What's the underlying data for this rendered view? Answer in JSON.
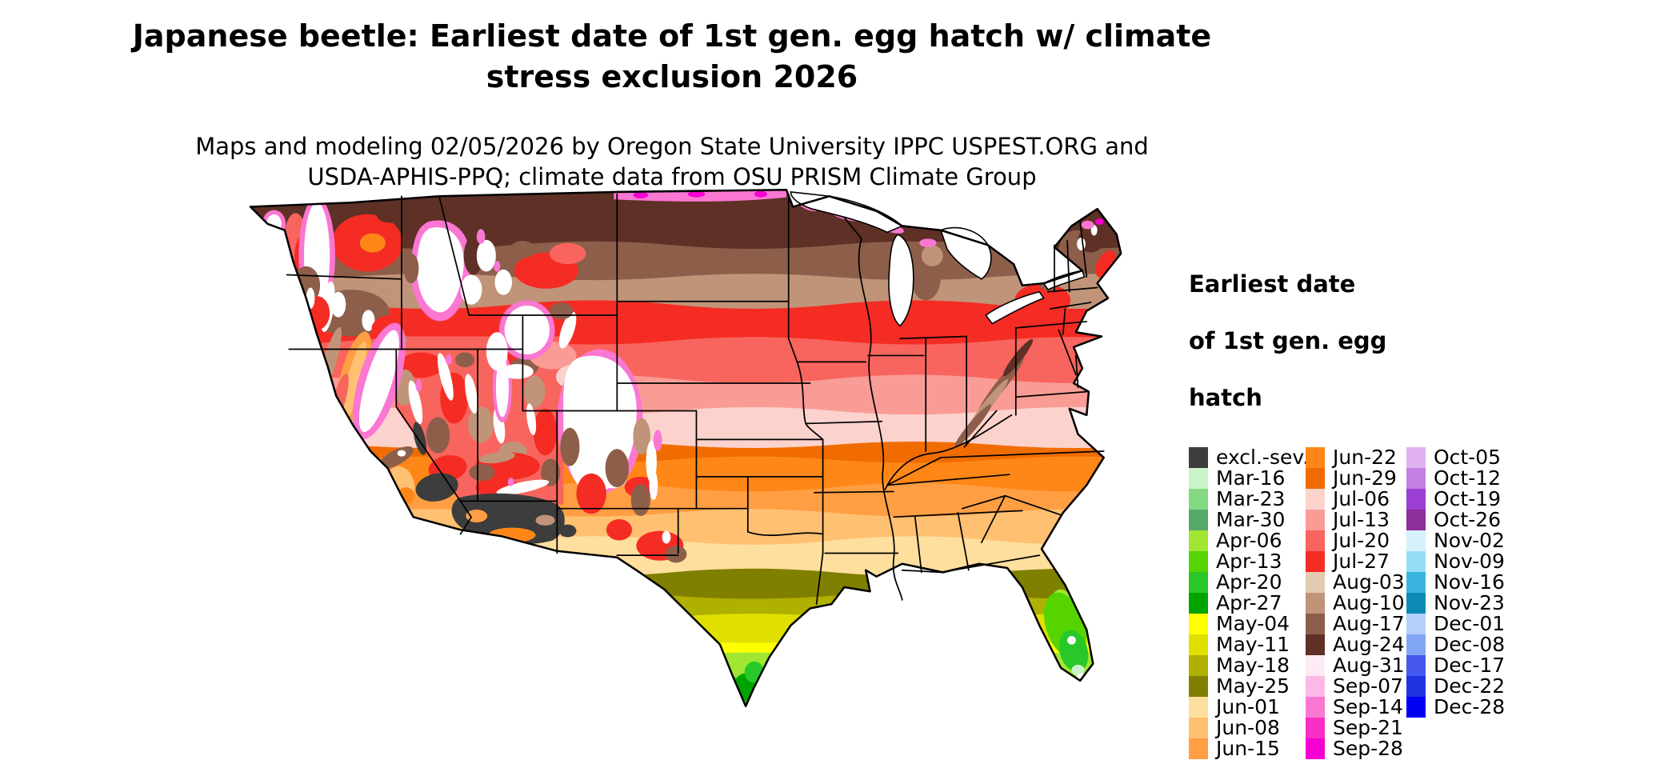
{
  "header": {
    "title_lines": [
      "Japanese beetle: Earliest date of 1st gen. egg hatch w/ climate",
      "stress exclusion 2026"
    ],
    "subtitle_lines": [
      "Maps and modeling 02/05/2026 by Oregon State University IPPC USPEST.ORG and",
      "USDA-APHIS-PPQ; climate data from OSU PRISM Climate Group"
    ]
  },
  "legend": {
    "title_lines": [
      "Earliest date",
      "of 1st gen. egg",
      "hatch"
    ],
    "columns": [
      [
        {
          "label": "excl.-sev.",
          "color": "#3d3d3d"
        },
        {
          "label": "Mar-16",
          "color": "#c9f4c9"
        },
        {
          "label": "Mar-23",
          "color": "#82d982"
        },
        {
          "label": "Mar-30",
          "color": "#57a86b"
        },
        {
          "label": "Apr-06",
          "color": "#a0e632"
        },
        {
          "label": "Apr-13",
          "color": "#55d400"
        },
        {
          "label": "Apr-20",
          "color": "#28c828"
        },
        {
          "label": "Apr-27",
          "color": "#00a400"
        },
        {
          "label": "May-04",
          "color": "#ffff00"
        },
        {
          "label": "May-11",
          "color": "#e0e000"
        },
        {
          "label": "May-18",
          "color": "#b0b000"
        },
        {
          "label": "May-25",
          "color": "#808000"
        },
        {
          "label": "Jun-01",
          "color": "#ffdf9e"
        },
        {
          "label": "Jun-08",
          "color": "#ffc072"
        },
        {
          "label": "Jun-15",
          "color": "#ff9e42"
        }
      ],
      [
        {
          "label": "Jun-22",
          "color": "#ff8718"
        },
        {
          "label": "Jun-29",
          "color": "#f06c00"
        },
        {
          "label": "Jul-06",
          "color": "#fcd2cd"
        },
        {
          "label": "Jul-13",
          "color": "#fa9c96"
        },
        {
          "label": "Jul-20",
          "color": "#f8655e"
        },
        {
          "label": "Jul-27",
          "color": "#f52c24"
        },
        {
          "label": "Aug-03",
          "color": "#e3cbb3"
        },
        {
          "label": "Aug-10",
          "color": "#c09478"
        },
        {
          "label": "Aug-17",
          "color": "#8d5f4b"
        },
        {
          "label": "Aug-24",
          "color": "#5e3026"
        },
        {
          "label": "Aug-31",
          "color": "#fdeaf5"
        },
        {
          "label": "Sep-07",
          "color": "#fcb9e6"
        },
        {
          "label": "Sep-14",
          "color": "#fa77d2"
        },
        {
          "label": "Sep-21",
          "color": "#f72fc4"
        },
        {
          "label": "Sep-28",
          "color": "#f500d2"
        }
      ],
      [
        {
          "label": "Oct-05",
          "color": "#dfb2ef"
        },
        {
          "label": "Oct-12",
          "color": "#c57fe3"
        },
        {
          "label": "Oct-19",
          "color": "#9c3ed3"
        },
        {
          "label": "Oct-26",
          "color": "#8e2d9c"
        },
        {
          "label": "Nov-02",
          "color": "#d4f1fc"
        },
        {
          "label": "Nov-09",
          "color": "#96def4"
        },
        {
          "label": "Nov-16",
          "color": "#3cb4e0"
        },
        {
          "label": "Nov-23",
          "color": "#0c8cb4"
        },
        {
          "label": "Dec-01",
          "color": "#b4cffa"
        },
        {
          "label": "Dec-08",
          "color": "#82a6f6"
        },
        {
          "label": "Dec-17",
          "color": "#4458ee"
        },
        {
          "label": "Dec-22",
          "color": "#1f33e2"
        },
        {
          "label": "Dec-28",
          "color": "#0000f5"
        }
      ]
    ]
  }
}
